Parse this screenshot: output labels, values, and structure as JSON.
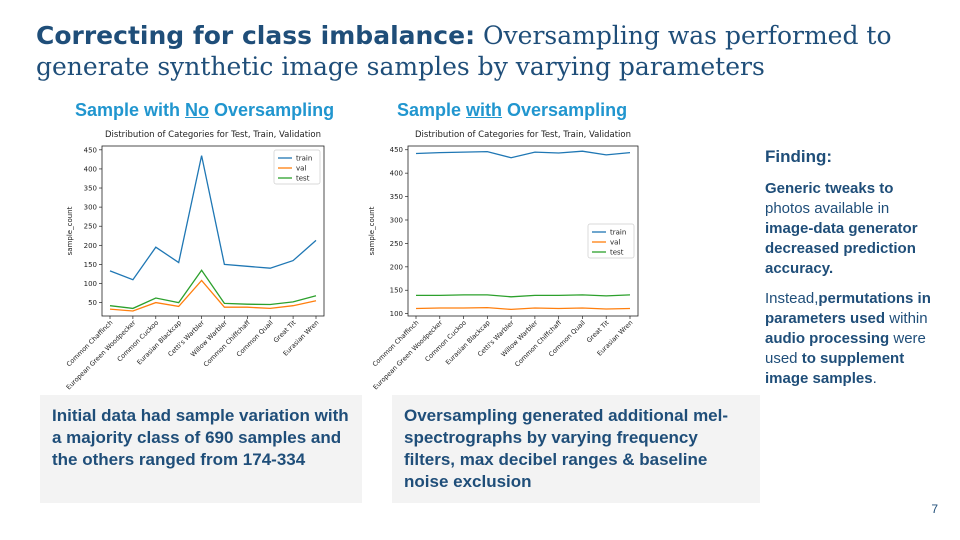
{
  "slide": {
    "title_bold": "Correcting for class imbalance:",
    "title_rest": " Oversampling was performed to generate synthetic image samples by varying parameters",
    "left_heading": {
      "pre": "Sample with ",
      "u": "No",
      "post": " Oversampling"
    },
    "right_heading": {
      "pre": "Sample ",
      "u": "with",
      "post": " Oversampling"
    },
    "left_box": "Initial data had sample variation with a majority class of 690 samples and the others ranged from 174-334",
    "right_box": "Oversampling generated additional mel-spectrographs by varying frequency filters, max decibel ranges & baseline noise exclusion",
    "finding": {
      "heading": "Finding:",
      "p1_a": "Generic tweaks to",
      "p1_b": " photos available in ",
      "p1_c": "image-data generator decreased prediction accuracy.",
      "p2_a": "Instead,",
      "p2_b": "permutations in parameters used",
      "p2_c": " within ",
      "p2_d": "audio processing",
      "p2_e": " were used ",
      "p2_f": "to supplement image samples",
      "p2_g": "."
    },
    "page_number": "7"
  },
  "colors": {
    "train": "#1f77b4",
    "val": "#ff7f0e",
    "test": "#2ca02c"
  },
  "chart_data": [
    {
      "type": "line",
      "title": "Distribution of Categories for Test, Train, Validation",
      "ylabel": "sample_count",
      "xlabel": "",
      "categories": [
        "Common Chaffinch",
        "European Green Woodpecker",
        "Common Cuckoo",
        "Eurasian Blackcap",
        "Cetti's Warbler",
        "Willow Warbler",
        "Common Chiffchaff",
        "Common Quail",
        "Great Tit",
        "Eurasian Wren"
      ],
      "yticks": [
        50,
        100,
        150,
        200,
        250,
        300,
        350,
        400,
        450
      ],
      "ylim": [
        15,
        460
      ],
      "legend": "top-right",
      "series": [
        {
          "name": "train",
          "values": [
            133,
            110,
            195,
            155,
            435,
            150,
            145,
            140,
            160,
            213
          ]
        },
        {
          "name": "val",
          "values": [
            33,
            28,
            50,
            40,
            108,
            38,
            38,
            35,
            42,
            55
          ]
        },
        {
          "name": "test",
          "values": [
            42,
            35,
            62,
            50,
            135,
            48,
            46,
            45,
            52,
            68
          ]
        }
      ]
    },
    {
      "type": "line",
      "title": "Distribution of Categories for Test, Train, Validation",
      "ylabel": "sample_count",
      "xlabel": "",
      "categories": [
        "Common Chaffinch",
        "European Green Woodpecker",
        "Common Cuckoo",
        "Eurasian Blackcap",
        "Cetti's Warbler",
        "Willow Warbler",
        "Common Chiffchaff",
        "Common Quail",
        "Great Tit",
        "Eurasian Wren"
      ],
      "yticks": [
        100,
        150,
        200,
        250,
        300,
        350,
        400,
        450
      ],
      "ylim": [
        95,
        458
      ],
      "legend": "center-right",
      "series": [
        {
          "name": "train",
          "values": [
            442,
            444,
            445,
            446,
            433,
            445,
            443,
            447,
            439,
            444
          ]
        },
        {
          "name": "val",
          "values": [
            111,
            112,
            112,
            113,
            109,
            112,
            111,
            112,
            110,
            111
          ]
        },
        {
          "name": "test",
          "values": [
            139,
            139,
            140,
            140,
            136,
            139,
            139,
            140,
            138,
            140
          ]
        }
      ]
    }
  ]
}
